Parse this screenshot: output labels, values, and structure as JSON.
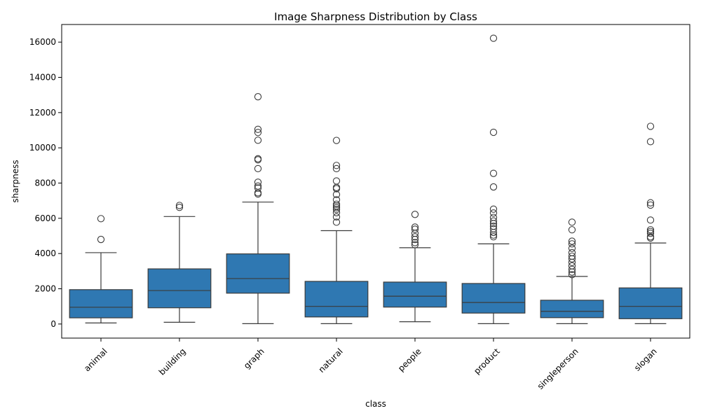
{
  "chart_data": {
    "type": "box",
    "title": "Image Sharpness Distribution by Class",
    "xlabel": "class",
    "ylabel": "sharpness",
    "ylim": [
      -800,
      17000
    ],
    "yticks": [
      0,
      2000,
      4000,
      6000,
      8000,
      10000,
      12000,
      14000,
      16000
    ],
    "ytick_labels": [
      "0",
      "2000",
      "4000",
      "6000",
      "8000",
      "10000",
      "12000",
      "14000",
      "16000"
    ],
    "x_tick_rotation": 45,
    "box_color": "#2f78b2",
    "line_color": "#3b3b3b",
    "categories": [
      "animal",
      "building",
      "graph",
      "natural",
      "people",
      "product",
      "singleperson",
      "slogan"
    ],
    "boxes": [
      {
        "class": "animal",
        "whislo": 60,
        "q1": 350,
        "med": 950,
        "q3": 1950,
        "whishi": 4050,
        "fliers": [
          4800,
          5980
        ]
      },
      {
        "class": "building",
        "whislo": 100,
        "q1": 920,
        "med": 1900,
        "q3": 3130,
        "whishi": 6100,
        "fliers": [
          6620,
          6730
        ]
      },
      {
        "class": "graph",
        "whislo": 20,
        "q1": 1750,
        "med": 2580,
        "q3": 3980,
        "whishi": 6920,
        "fliers": [
          7380,
          7450,
          7720,
          7830,
          8050,
          8820,
          9320,
          9380,
          10430,
          10870,
          11050,
          12900
        ]
      },
      {
        "class": "natural",
        "whislo": 20,
        "q1": 400,
        "med": 1000,
        "q3": 2420,
        "whishi": 5300,
        "fliers": [
          5780,
          6080,
          6320,
          6500,
          6600,
          6700,
          6800,
          7050,
          7350,
          7680,
          7750,
          8120,
          8820,
          9000,
          10420
        ]
      },
      {
        "class": "people",
        "whislo": 130,
        "q1": 960,
        "med": 1580,
        "q3": 2380,
        "whishi": 4330,
        "fliers": [
          4500,
          4620,
          4800,
          4950,
          5150,
          5380,
          5500,
          6220
        ]
      },
      {
        "class": "product",
        "whislo": 20,
        "q1": 620,
        "med": 1220,
        "q3": 2300,
        "whishi": 4550,
        "fliers": [
          4950,
          5050,
          5200,
          5400,
          5550,
          5700,
          5850,
          6050,
          6300,
          6520,
          7780,
          8550,
          10880,
          16220
        ]
      },
      {
        "class": "singleperson",
        "whislo": 20,
        "q1": 360,
        "med": 720,
        "q3": 1350,
        "whishi": 2700,
        "fliers": [
          2800,
          2950,
          3100,
          3300,
          3500,
          3700,
          3850,
          4050,
          4300,
          4550,
          4700,
          5350,
          5780
        ]
      },
      {
        "class": "slogan",
        "whislo": 20,
        "q1": 300,
        "med": 1000,
        "q3": 2050,
        "whishi": 4600,
        "fliers": [
          4880,
          4950,
          5150,
          5250,
          5350,
          5900,
          6750,
          6880,
          10350,
          11220
        ]
      }
    ]
  }
}
